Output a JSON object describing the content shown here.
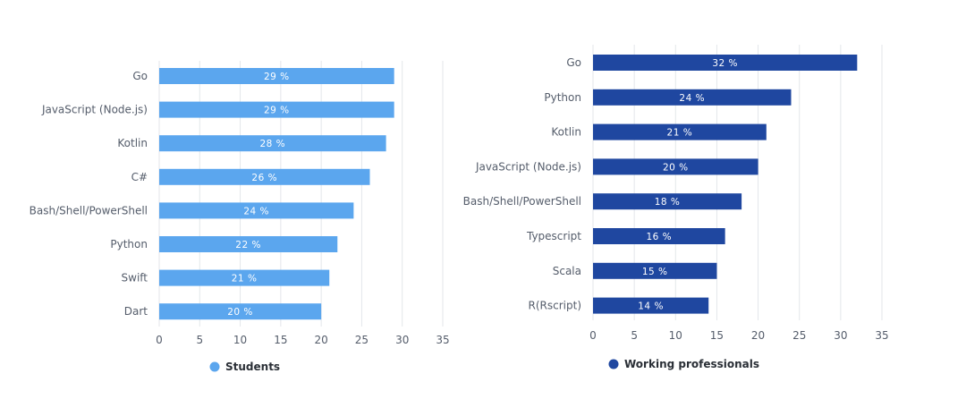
{
  "chart_data": [
    {
      "type": "bar",
      "orientation": "horizontal",
      "name": "Students",
      "color": "#5ba6ee",
      "categories": [
        "Go",
        "JavaScript (Node.js)",
        "Kotlin",
        "C#",
        "Bash/Shell/PowerShell",
        "Python",
        "Swift",
        "Dart"
      ],
      "values": [
        29,
        29,
        28,
        26,
        24,
        22,
        21,
        20
      ],
      "value_suffix": " %",
      "xlim": [
        0,
        35
      ],
      "xticks": [
        0,
        5,
        10,
        15,
        20,
        25,
        30,
        35
      ],
      "legend": "Students",
      "legend_position": "bottom-center",
      "grid": true
    },
    {
      "type": "bar",
      "orientation": "horizontal",
      "name": "Working professionals",
      "color": "#1f47a0",
      "categories": [
        "Go",
        "Python",
        "Kotlin",
        "JavaScript (Node.js)",
        "Bash/Shell/PowerShell",
        "Typescript",
        "Scala",
        "R(Rscript)"
      ],
      "values": [
        32,
        24,
        21,
        20,
        18,
        16,
        15,
        14
      ],
      "value_suffix": " %",
      "xlim": [
        0,
        35
      ],
      "xticks": [
        0,
        5,
        10,
        15,
        20,
        25,
        30,
        35
      ],
      "legend": "Working professionals",
      "legend_position": "bottom-center",
      "grid": true
    }
  ]
}
